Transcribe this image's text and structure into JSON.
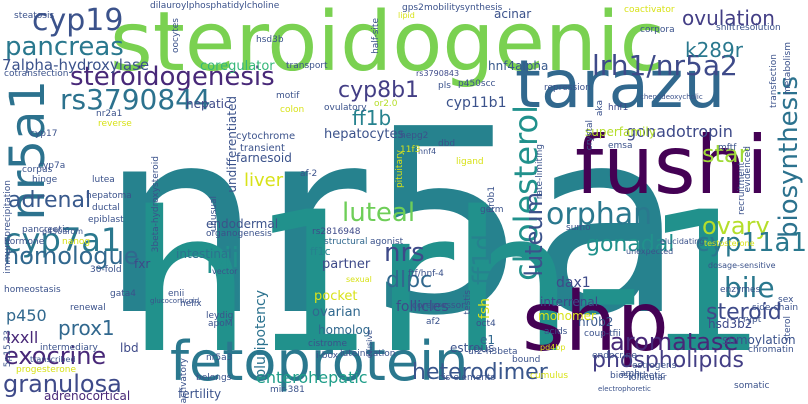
{
  "words": [
    {
      "text": "nr5a",
      "color": "#26828e"
    },
    {
      "text": "h1rh-1",
      "color": "#21918c"
    },
    {
      "text": "steroidogenic",
      "color": "#7ad151"
    },
    {
      "text": "tarazu",
      "color": "#31688e"
    },
    {
      "text": "fushi",
      "color": "#440154"
    },
    {
      "text": "shp",
      "color": "#440154"
    },
    {
      "text": "fetoprotein",
      "color": "#2a788e"
    },
    {
      "text": "nr5a1",
      "color": "#2c728e"
    },
    {
      "text": "cholesterol",
      "color": "#21918c"
    },
    {
      "text": "cyp19",
      "color": "#3b528b"
    },
    {
      "text": "steroidogenesis",
      "color": "#482878"
    },
    {
      "text": "lrh1/nr5a2",
      "color": "#3e4a89"
    },
    {
      "text": "pancreas",
      "color": "#2a788e"
    },
    {
      "text": "rs3790844",
      "color": "#2c728e"
    },
    {
      "text": "cyp8b1",
      "color": "#433e85"
    },
    {
      "text": "ovulation",
      "color": "#433e85"
    },
    {
      "text": "k289r",
      "color": "#2a788e"
    },
    {
      "text": "7alpha-hydroxylase",
      "color": "#3b528b"
    },
    {
      "text": "coregulator",
      "color": "#35b779"
    },
    {
      "text": "hnf4alpha",
      "color": "#38598c"
    },
    {
      "text": "ff1b",
      "color": "#26828e"
    },
    {
      "text": "cyp11b1",
      "color": "#3b528b"
    },
    {
      "text": "luteum",
      "color": "#3b528b"
    },
    {
      "text": "biosynthesis",
      "color": "#2c728e"
    },
    {
      "text": "star",
      "color": "#a0da39"
    },
    {
      "text": "orphan",
      "color": "#2a788e"
    },
    {
      "text": "luteal",
      "color": "#6ece58"
    },
    {
      "text": "gonadal",
      "color": "#21918c"
    },
    {
      "text": "ovary",
      "color": "#b5de2b"
    },
    {
      "text": "liver",
      "color": "#d8e219"
    },
    {
      "text": "adrenal",
      "color": "#38598c"
    },
    {
      "text": "cyp7a1",
      "color": "#2a788e"
    },
    {
      "text": "homologue",
      "color": "#31688e"
    },
    {
      "text": "pii",
      "color": "#21918c"
    },
    {
      "text": "nrs",
      "color": "#3e4a89"
    },
    {
      "text": "dlpc",
      "color": "#31688e"
    },
    {
      "text": "ff1d",
      "color": "#26828e"
    },
    {
      "text": "bile",
      "color": "#2a788e"
    },
    {
      "text": "cyp11a1",
      "color": "#2a788e"
    },
    {
      "text": "steroid",
      "color": "#3e4a89"
    },
    {
      "text": "aromatase",
      "color": "#482878"
    },
    {
      "text": "phospholipids",
      "color": "#433e85"
    },
    {
      "text": "heterodimer",
      "color": "#39568c"
    },
    {
      "text": "granulosa",
      "color": "#3e4a89"
    },
    {
      "text": "exocrine",
      "color": "#482878"
    },
    {
      "text": "prox1",
      "color": "#31688e"
    },
    {
      "text": "enterohepatic",
      "color": "#1f9e89"
    },
    {
      "text": "gonadotropin",
      "color": "#3e4a89"
    },
    {
      "text": "superfamily",
      "color": "#b5de2b"
    },
    {
      "text": "hepatocytes",
      "color": "#3b528b"
    },
    {
      "text": "hepatic",
      "color": "#3e4a89"
    },
    {
      "text": "farnesoid",
      "color": "#3b528b"
    },
    {
      "text": "endodermal",
      "color": "#3b528b"
    },
    {
      "text": "intestinal",
      "color": "#2c728e"
    },
    {
      "text": "pluripotency",
      "color": "#2c728e"
    },
    {
      "text": "partner",
      "color": "#3e4a89"
    },
    {
      "text": "pocket",
      "color": "#d8e219"
    },
    {
      "text": "ovarian",
      "color": "#31688e"
    },
    {
      "text": "homolog",
      "color": "#31688e"
    },
    {
      "text": "fxr",
      "color": "#3e4a89"
    },
    {
      "text": "p450",
      "color": "#31688e"
    },
    {
      "text": "lxxll",
      "color": "#482878"
    },
    {
      "text": "lbd",
      "color": "#3e4a89"
    },
    {
      "text": "adrenocortical",
      "color": "#482878"
    },
    {
      "text": "fertility",
      "color": "#3b528b"
    },
    {
      "text": "estrous",
      "color": "#3b528b"
    },
    {
      "text": "dax1",
      "color": "#3e4a89"
    },
    {
      "text": "interrenal",
      "color": "#3e4a89"
    },
    {
      "text": "hsd3b2",
      "color": "#3e4a89"
    },
    {
      "text": "sumoylation",
      "color": "#3b528b"
    },
    {
      "text": "nr0b2",
      "color": "#38598c"
    },
    {
      "text": "follicles",
      "color": "#3e4a89"
    },
    {
      "text": "monomer",
      "color": "#d8e219"
    },
    {
      "text": "e1",
      "color": "#31688e"
    },
    {
      "text": "fsh",
      "color": "#d8e219"
    },
    {
      "text": "acinar",
      "color": "#3b528b"
    },
    {
      "text": "undifferentiated",
      "color": "#3b528b"
    },
    {
      "text": "ff1c",
      "color": "#26828e"
    },
    {
      "text": "ftf/hnf-4",
      "color": "#3b528b"
    },
    {
      "text": "rs2816948",
      "color": "#3e4a89"
    },
    {
      "text": "structural",
      "color": "#31688e"
    },
    {
      "text": "organogenesis",
      "color": "#3b528b"
    },
    {
      "text": "cytochrome",
      "color": "#3b528b"
    },
    {
      "text": "transient",
      "color": "#3b528b"
    },
    {
      "text": "ovulatory",
      "color": "#3b528b"
    },
    {
      "text": "or2.0",
      "color": "#b5de2b"
    },
    {
      "text": "hepg2",
      "color": "#3b528b"
    },
    {
      "text": "colon",
      "color": "#d8e219"
    },
    {
      "text": "motif",
      "color": "#3b528b"
    },
    {
      "text": "transport",
      "color": "#3b528b"
    },
    {
      "text": "rs3790843",
      "color": "#3e4a89"
    },
    {
      "text": "p450scc",
      "color": "#3b528b"
    },
    {
      "text": "dbd",
      "color": "#3b528b"
    },
    {
      "text": "ligand",
      "color": "#d8e219"
    },
    {
      "text": "emsa",
      "color": "#3b528b"
    },
    {
      "text": "hnf4",
      "color": "#3b528b"
    },
    {
      "text": "hnf1",
      "color": "#3e4a89"
    },
    {
      "text": "crypt",
      "color": "#3b528b"
    },
    {
      "text": "sex",
      "color": "#3b528b"
    },
    {
      "text": "sterol",
      "color": "#3b528b"
    },
    {
      "text": "enzymes",
      "color": "#3b528b"
    },
    {
      "text": "side-chain",
      "color": "#3b528b"
    },
    {
      "text": "chromatin",
      "color": "#3b528b"
    },
    {
      "text": "somatic",
      "color": "#3b528b"
    },
    {
      "text": "follicular",
      "color": "#3b528b"
    },
    {
      "text": "estrogens",
      "color": "#3b528b"
    },
    {
      "text": "endocrine",
      "color": "#3b528b"
    },
    {
      "text": "coup-tfii",
      "color": "#3b528b"
    },
    {
      "text": "acids",
      "color": "#3b528b"
    },
    {
      "text": "oct4",
      "color": "#3b528b"
    },
    {
      "text": "af2",
      "color": "#3b528b"
    },
    {
      "text": "corepressor",
      "color": "#3b528b"
    },
    {
      "text": "helix",
      "color": "#3b528b"
    },
    {
      "text": "leydig",
      "color": "#3b528b"
    },
    {
      "text": "apoM",
      "color": "#3b528b"
    },
    {
      "text": "cistrome",
      "color": "#3b528b"
    },
    {
      "text": "i-box",
      "color": "#3b528b"
    },
    {
      "text": "luteinization",
      "color": "#3b528b"
    },
    {
      "text": "uf2-h3beta",
      "color": "#3b528b"
    },
    {
      "text": "cis-elements",
      "color": "#3b528b"
    },
    {
      "text": "nr5a3",
      "color": "#3b528b"
    },
    {
      "text": "mir-381",
      "color": "#3b528b"
    },
    {
      "text": "progesterone",
      "color": "#d8e219"
    },
    {
      "text": "5p15.33",
      "color": "#3b528b"
    },
    {
      "text": "intermediary",
      "color": "#3b528b"
    },
    {
      "text": "transcribed",
      "color": "#3b528b"
    },
    {
      "text": "renewal",
      "color": "#3b528b"
    },
    {
      "text": "homeostasis",
      "color": "#3b528b"
    },
    {
      "text": "30-fold",
      "color": "#3b528b"
    },
    {
      "text": "gata4",
      "color": "#3b528b"
    },
    {
      "text": "hormone",
      "color": "#3b528b"
    },
    {
      "text": "nanog",
      "color": "#d8e219"
    },
    {
      "text": "p450arom",
      "color": "#3b528b"
    },
    {
      "text": "pancreatic",
      "color": "#3b528b"
    },
    {
      "text": "epiblast",
      "color": "#3b528b"
    },
    {
      "text": "ductal",
      "color": "#3b528b"
    },
    {
      "text": "hepatoma",
      "color": "#3b528b"
    },
    {
      "text": "lutea",
      "color": "#3b528b"
    },
    {
      "text": "corpus",
      "color": "#3b528b"
    },
    {
      "text": "cyp7a",
      "color": "#3b528b"
    },
    {
      "text": "hinge",
      "color": "#3b528b"
    },
    {
      "text": "cyp17",
      "color": "#3b528b"
    },
    {
      "text": "nr2a1",
      "color": "#3b528b"
    },
    {
      "text": "reverse",
      "color": "#d8e219"
    },
    {
      "text": "cotransfection",
      "color": "#3b528b"
    },
    {
      "text": "steatosis",
      "color": "#3b528b"
    },
    {
      "text": "dilauroylphosphatidylcholine",
      "color": "#3b528b"
    },
    {
      "text": "oocytes",
      "color": "#3b528b"
    },
    {
      "text": "hsd3b",
      "color": "#3b528b"
    },
    {
      "text": "half-site",
      "color": "#3b528b"
    },
    {
      "text": "gps2",
      "color": "#3b528b"
    },
    {
      "text": "mobility",
      "color": "#3b528b"
    },
    {
      "text": "synthesis",
      "color": "#3b528b"
    },
    {
      "text": "coactivator",
      "color": "#d8e219"
    },
    {
      "text": "corpora",
      "color": "#3b528b"
    },
    {
      "text": "shift",
      "color": "#3b528b"
    },
    {
      "text": "resolution",
      "color": "#3b528b"
    },
    {
      "text": "metabolism",
      "color": "#3b528b"
    },
    {
      "text": "transfection",
      "color": "#3b528b"
    },
    {
      "text": "pls",
      "color": "#3b528b"
    },
    {
      "text": "repression",
      "color": "#3b528b"
    },
    {
      "text": "chenodeoxycholic",
      "color": "#3b528b"
    },
    {
      "text": "crystal",
      "color": "#3b528b"
    },
    {
      "text": "aka",
      "color": "#3b528b"
    },
    {
      "text": "mftf",
      "color": "#3b528b"
    },
    {
      "text": "evidenced",
      "color": "#3b528b"
    },
    {
      "text": "recruitment",
      "color": "#3b528b"
    },
    {
      "text": "rate-limiting",
      "color": "#3b528b"
    },
    {
      "text": "germ",
      "color": "#3b528b"
    },
    {
      "text": "nr0b1",
      "color": "#3b528b"
    },
    {
      "text": "sumo",
      "color": "#3b528b"
    },
    {
      "text": "unexpected",
      "color": "#3b528b"
    },
    {
      "text": "elucidating",
      "color": "#3b528b"
    },
    {
      "text": "dosage-sensitive",
      "color": "#3b528b"
    },
    {
      "text": "testosterone",
      "color": "#d8e219"
    },
    {
      "text": "pd4bp",
      "color": "#d8e219"
    },
    {
      "text": "bound",
      "color": "#3b528b"
    },
    {
      "text": "cumulus",
      "color": "#d8e219"
    },
    {
      "text": "electrophoretic",
      "color": "#3b528b"
    },
    {
      "text": "amh",
      "color": "#3b528b"
    },
    {
      "text": "activatory",
      "color": "#3b528b"
    },
    {
      "text": "belongs",
      "color": "#3b528b"
    },
    {
      "text": "glucocorticoid",
      "color": "#3b528b"
    },
    {
      "text": "enii",
      "color": "#3b528b"
    },
    {
      "text": "vector",
      "color": "#3b528b"
    },
    {
      "text": "unusual",
      "color": "#3b528b"
    },
    {
      "text": "3beta-hydroxysteroid",
      "color": "#3b528b"
    },
    {
      "text": "af-2",
      "color": "#3b528b"
    },
    {
      "text": "agonist",
      "color": "#3b528b"
    },
    {
      "text": "sexual",
      "color": "#d8e219"
    },
    {
      "text": "elusive",
      "color": "#3b528b"
    },
    {
      "text": "testis",
      "color": "#3b528b"
    },
    {
      "text": "pituitary",
      "color": "#d8e219"
    },
    {
      "text": "11f3",
      "color": "#d8e219"
    },
    {
      "text": "lipid",
      "color": "#d8e219"
    },
    {
      "text": "biosynthetic",
      "color": "#3b528b"
    },
    {
      "text": "immunoprecipitation",
      "color": "#3b528b"
    }
  ]
}
